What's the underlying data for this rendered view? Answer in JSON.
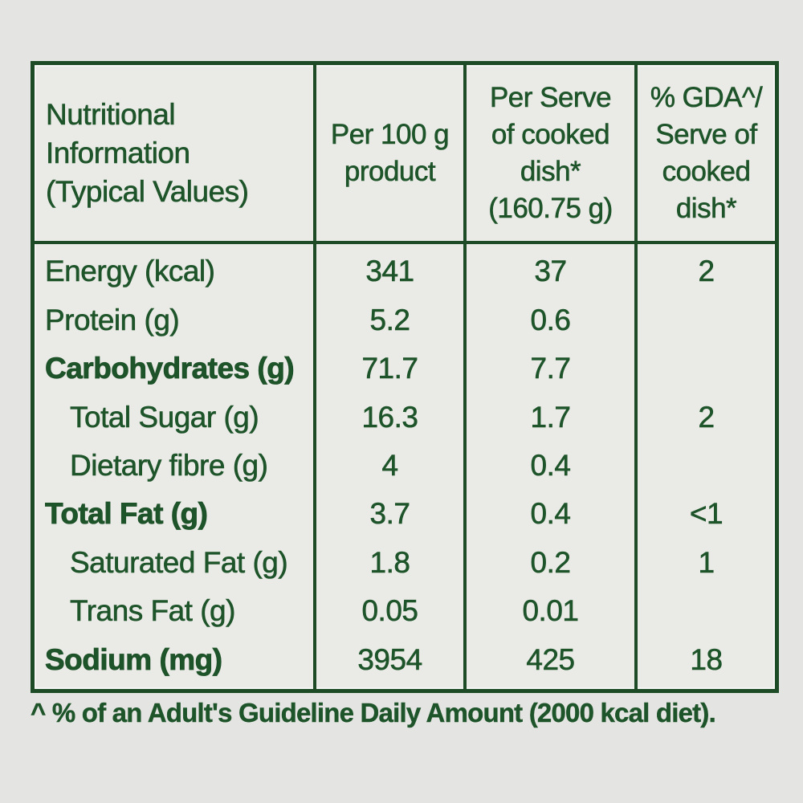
{
  "colors": {
    "page_bg": "#e4e4e2",
    "cell_bg": "#eaeae7",
    "text_green": "#1e5429",
    "border_green": "#1d4b26"
  },
  "table": {
    "header": {
      "col1": {
        "lines": [
          "Nutritional",
          "Information",
          "(Typical Values)"
        ]
      },
      "col2": {
        "lines": [
          "Per 100 g",
          "product"
        ]
      },
      "col3": {
        "lines": [
          "Per Serve",
          "of cooked",
          "dish*",
          "(160.75 g)"
        ]
      },
      "col4": {
        "lines": [
          "% GDA^/",
          "Serve of",
          "cooked",
          "dish*"
        ]
      }
    },
    "rows": [
      {
        "label": "Energy (kcal)",
        "per100": "341",
        "per_serve": "37",
        "gda": "2"
      },
      {
        "label": "Protein (g)",
        "per100": "5.2",
        "per_serve": "0.6",
        "gda": ""
      },
      {
        "label": "Carbohydrates (g)",
        "per100": "71.7",
        "per_serve": "7.7",
        "gda": ""
      },
      {
        "label": "Total Sugar (g)",
        "per100": "16.3",
        "per_serve": "1.7",
        "gda": "2"
      },
      {
        "label": "Dietary fibre (g)",
        "per100": "4",
        "per_serve": "0.4",
        "gda": ""
      },
      {
        "label": "Total Fat (g)",
        "per100": "3.7",
        "per_serve": "0.4",
        "gda": "<1"
      },
      {
        "label": "Saturated Fat (g)",
        "per100": "1.8",
        "per_serve": "0.2",
        "gda": "1"
      },
      {
        "label": "Trans Fat (g)",
        "per100": "0.05",
        "per_serve": "0.01",
        "gda": ""
      },
      {
        "label": "Sodium (mg)",
        "per100": "3954",
        "per_serve": "425",
        "gda": "18"
      }
    ],
    "footnote": "^ % of an Adult's Guideline Daily Amount (2000 kcal diet)."
  }
}
